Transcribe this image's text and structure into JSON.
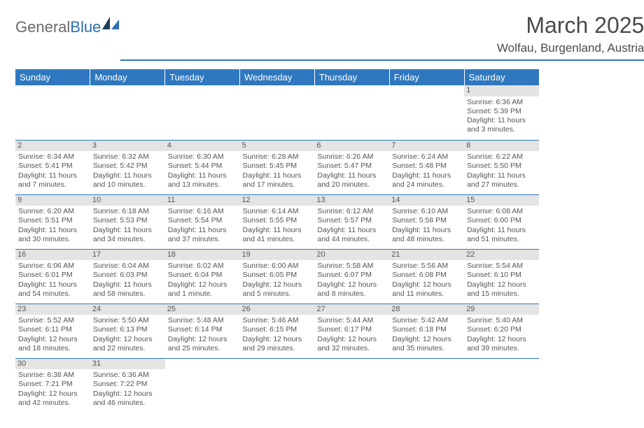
{
  "brand": {
    "first": "General",
    "second": "Blue"
  },
  "title": "March 2025",
  "location": "Wolfau, Burgenland, Austria",
  "colors": {
    "header_bg": "#2f78bf",
    "header_text": "#ffffff",
    "daynum_bg": "#e4e4e4",
    "border": "#2f78bf",
    "logo_accent": "#2a6fb5"
  },
  "weekdays": [
    "Sunday",
    "Monday",
    "Tuesday",
    "Wednesday",
    "Thursday",
    "Friday",
    "Saturday"
  ],
  "weeks": [
    [
      null,
      null,
      null,
      null,
      null,
      null,
      {
        "n": "1",
        "sr": "Sunrise: 6:36 AM",
        "ss": "Sunset: 5:39 PM",
        "d1": "Daylight: 11 hours",
        "d2": "and 3 minutes."
      }
    ],
    [
      {
        "n": "2",
        "sr": "Sunrise: 6:34 AM",
        "ss": "Sunset: 5:41 PM",
        "d1": "Daylight: 11 hours",
        "d2": "and 7 minutes."
      },
      {
        "n": "3",
        "sr": "Sunrise: 6:32 AM",
        "ss": "Sunset: 5:42 PM",
        "d1": "Daylight: 11 hours",
        "d2": "and 10 minutes."
      },
      {
        "n": "4",
        "sr": "Sunrise: 6:30 AM",
        "ss": "Sunset: 5:44 PM",
        "d1": "Daylight: 11 hours",
        "d2": "and 13 minutes."
      },
      {
        "n": "5",
        "sr": "Sunrise: 6:28 AM",
        "ss": "Sunset: 5:45 PM",
        "d1": "Daylight: 11 hours",
        "d2": "and 17 minutes."
      },
      {
        "n": "6",
        "sr": "Sunrise: 6:26 AM",
        "ss": "Sunset: 5:47 PM",
        "d1": "Daylight: 11 hours",
        "d2": "and 20 minutes."
      },
      {
        "n": "7",
        "sr": "Sunrise: 6:24 AM",
        "ss": "Sunset: 5:48 PM",
        "d1": "Daylight: 11 hours",
        "d2": "and 24 minutes."
      },
      {
        "n": "8",
        "sr": "Sunrise: 6:22 AM",
        "ss": "Sunset: 5:50 PM",
        "d1": "Daylight: 11 hours",
        "d2": "and 27 minutes."
      }
    ],
    [
      {
        "n": "9",
        "sr": "Sunrise: 6:20 AM",
        "ss": "Sunset: 5:51 PM",
        "d1": "Daylight: 11 hours",
        "d2": "and 30 minutes."
      },
      {
        "n": "10",
        "sr": "Sunrise: 6:18 AM",
        "ss": "Sunset: 5:53 PM",
        "d1": "Daylight: 11 hours",
        "d2": "and 34 minutes."
      },
      {
        "n": "11",
        "sr": "Sunrise: 6:16 AM",
        "ss": "Sunset: 5:54 PM",
        "d1": "Daylight: 11 hours",
        "d2": "and 37 minutes."
      },
      {
        "n": "12",
        "sr": "Sunrise: 6:14 AM",
        "ss": "Sunset: 5:55 PM",
        "d1": "Daylight: 11 hours",
        "d2": "and 41 minutes."
      },
      {
        "n": "13",
        "sr": "Sunrise: 6:12 AM",
        "ss": "Sunset: 5:57 PM",
        "d1": "Daylight: 11 hours",
        "d2": "and 44 minutes."
      },
      {
        "n": "14",
        "sr": "Sunrise: 6:10 AM",
        "ss": "Sunset: 5:58 PM",
        "d1": "Daylight: 11 hours",
        "d2": "and 48 minutes."
      },
      {
        "n": "15",
        "sr": "Sunrise: 6:08 AM",
        "ss": "Sunset: 6:00 PM",
        "d1": "Daylight: 11 hours",
        "d2": "and 51 minutes."
      }
    ],
    [
      {
        "n": "16",
        "sr": "Sunrise: 6:06 AM",
        "ss": "Sunset: 6:01 PM",
        "d1": "Daylight: 11 hours",
        "d2": "and 54 minutes."
      },
      {
        "n": "17",
        "sr": "Sunrise: 6:04 AM",
        "ss": "Sunset: 6:03 PM",
        "d1": "Daylight: 11 hours",
        "d2": "and 58 minutes."
      },
      {
        "n": "18",
        "sr": "Sunrise: 6:02 AM",
        "ss": "Sunset: 6:04 PM",
        "d1": "Daylight: 12 hours",
        "d2": "and 1 minute."
      },
      {
        "n": "19",
        "sr": "Sunrise: 6:00 AM",
        "ss": "Sunset: 6:05 PM",
        "d1": "Daylight: 12 hours",
        "d2": "and 5 minutes."
      },
      {
        "n": "20",
        "sr": "Sunrise: 5:58 AM",
        "ss": "Sunset: 6:07 PM",
        "d1": "Daylight: 12 hours",
        "d2": "and 8 minutes."
      },
      {
        "n": "21",
        "sr": "Sunrise: 5:56 AM",
        "ss": "Sunset: 6:08 PM",
        "d1": "Daylight: 12 hours",
        "d2": "and 11 minutes."
      },
      {
        "n": "22",
        "sr": "Sunrise: 5:54 AM",
        "ss": "Sunset: 6:10 PM",
        "d1": "Daylight: 12 hours",
        "d2": "and 15 minutes."
      }
    ],
    [
      {
        "n": "23",
        "sr": "Sunrise: 5:52 AM",
        "ss": "Sunset: 6:11 PM",
        "d1": "Daylight: 12 hours",
        "d2": "and 18 minutes."
      },
      {
        "n": "24",
        "sr": "Sunrise: 5:50 AM",
        "ss": "Sunset: 6:13 PM",
        "d1": "Daylight: 12 hours",
        "d2": "and 22 minutes."
      },
      {
        "n": "25",
        "sr": "Sunrise: 5:48 AM",
        "ss": "Sunset: 6:14 PM",
        "d1": "Daylight: 12 hours",
        "d2": "and 25 minutes."
      },
      {
        "n": "26",
        "sr": "Sunrise: 5:46 AM",
        "ss": "Sunset: 6:15 PM",
        "d1": "Daylight: 12 hours",
        "d2": "and 29 minutes."
      },
      {
        "n": "27",
        "sr": "Sunrise: 5:44 AM",
        "ss": "Sunset: 6:17 PM",
        "d1": "Daylight: 12 hours",
        "d2": "and 32 minutes."
      },
      {
        "n": "28",
        "sr": "Sunrise: 5:42 AM",
        "ss": "Sunset: 6:18 PM",
        "d1": "Daylight: 12 hours",
        "d2": "and 35 minutes."
      },
      {
        "n": "29",
        "sr": "Sunrise: 5:40 AM",
        "ss": "Sunset: 6:20 PM",
        "d1": "Daylight: 12 hours",
        "d2": "and 39 minutes."
      }
    ],
    [
      {
        "n": "30",
        "sr": "Sunrise: 6:38 AM",
        "ss": "Sunset: 7:21 PM",
        "d1": "Daylight: 12 hours",
        "d2": "and 42 minutes."
      },
      {
        "n": "31",
        "sr": "Sunrise: 6:36 AM",
        "ss": "Sunset: 7:22 PM",
        "d1": "Daylight: 12 hours",
        "d2": "and 46 minutes."
      },
      null,
      null,
      null,
      null,
      null
    ]
  ]
}
